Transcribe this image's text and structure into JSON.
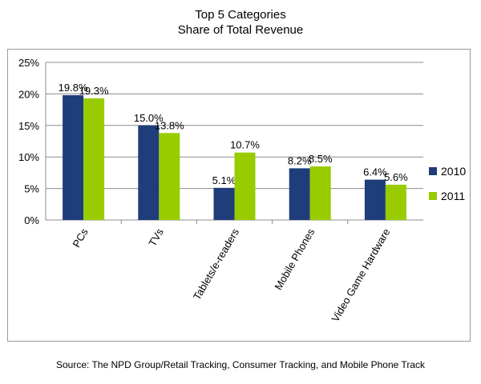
{
  "title": "Top 5 Categories",
  "subtitle": "Share of Total Revenue",
  "source": "Source: The NPD  Group/Retail Tracking, Consumer Tracking, and Mobile Phone Track",
  "colors": {
    "2010": "#1f3d7a",
    "2011": "#99cc00",
    "grid": "#8c8c8c",
    "axis": "#8c8c8c"
  },
  "chart_data": {
    "type": "bar",
    "title": "Top 5 Categories",
    "subtitle": "Share of Total Revenue",
    "categories": [
      "PCs",
      "TVs",
      "Tablets/e-readers",
      "Mobile Phones",
      "Video Game Hardware"
    ],
    "series": [
      {
        "name": "2010",
        "values": [
          19.8,
          15.0,
          5.1,
          8.2,
          6.4
        ],
        "labels": [
          "19.8%",
          "15.0%",
          "5.1%",
          "8.2%",
          "6.4%"
        ]
      },
      {
        "name": "2011",
        "values": [
          19.3,
          13.8,
          10.7,
          8.5,
          5.6
        ],
        "labels": [
          "19.3%",
          "13.8%",
          "10.7%",
          "8.5%",
          "5.6%"
        ]
      }
    ],
    "y_ticks": [
      "0%",
      "5%",
      "10%",
      "15%",
      "20%",
      "25%"
    ],
    "ylim": [
      0,
      25
    ],
    "xlabel": "",
    "ylabel": "",
    "grid": true,
    "legend_position": "right"
  }
}
